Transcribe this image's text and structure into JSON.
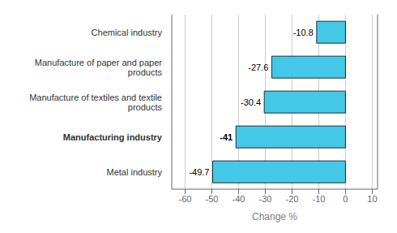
{
  "chart_data": {
    "type": "bar",
    "orientation": "horizontal",
    "categories": [
      "Metal industry",
      "Manufacturing industry",
      "Manufacture of textiles and textile\nproducts",
      "Manufacture of paper and paper\nproducts",
      "Chemical industry"
    ],
    "values": [
      -49.7,
      -41.0,
      -30.4,
      -27.6,
      -10.8
    ],
    "color": "#44C8E8",
    "xlabel": "Change %",
    "xlim": [
      -65,
      12
    ],
    "xticks": [
      -60,
      -50,
      -40,
      -30,
      -20,
      -10,
      0,
      10
    ],
    "grid": true,
    "data_labels": true
  }
}
